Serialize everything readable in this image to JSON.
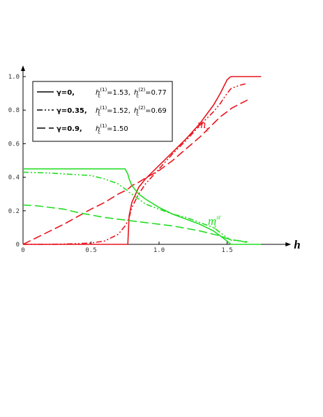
{
  "chart_data": {
    "type": "line",
    "xlabel": "h",
    "xlim": [
      0,
      1.95
    ],
    "ylim": [
      0,
      1.05
    ],
    "xticks": [
      0,
      0.5,
      {
        "value": 1,
        "label": "1.0"
      },
      1.5
    ],
    "yticks": [
      0,
      0.2,
      0.4,
      0.6,
      0.8,
      {
        "value": 1,
        "label": "1.0"
      }
    ],
    "x": [
      0,
      0.1,
      0.2,
      0.3,
      0.4,
      0.5,
      0.6,
      0.7,
      0.75,
      0.77,
      0.78,
      0.8,
      0.85,
      0.9,
      1.0,
      1.1,
      1.2,
      1.3,
      1.4,
      1.45,
      1.5,
      1.52,
      1.53,
      1.6,
      1.65,
      1.7,
      1.75
    ],
    "series": [
      {
        "color": "#e8141e",
        "dash": "solid",
        "values": [
          0,
          0,
          0,
          0,
          0,
          0,
          0,
          0,
          0,
          0,
          0.17,
          0.25,
          0.34,
          0.39,
          0.47,
          0.55,
          0.63,
          0.72,
          0.83,
          0.9,
          0.98,
          0.995,
          1,
          1,
          1,
          1,
          1
        ]
      },
      {
        "color": "#e8141e",
        "dash": "dash-dot-dot",
        "values": [
          0,
          0,
          0,
          0.002,
          0.004,
          0.008,
          0.02,
          0.06,
          0.11,
          0.14,
          0.16,
          0.22,
          0.3,
          0.36,
          0.45,
          0.54,
          0.62,
          0.71,
          0.79,
          0.84,
          0.9,
          0.92,
          0.93,
          0.95,
          0.96,
          null,
          null
        ]
      },
      {
        "color": "#e8141e",
        "dash": "long-dash",
        "values": [
          0,
          0.04,
          0.08,
          0.12,
          0.165,
          0.21,
          0.25,
          0.3,
          0.32,
          0.33,
          0.335,
          0.35,
          0.37,
          0.395,
          0.44,
          0.5,
          0.57,
          0.64,
          0.72,
          0.76,
          0.79,
          0.8,
          0.81,
          0.84,
          0.86,
          null,
          null
        ]
      },
      {
        "color": "#22dd22",
        "dash": "solid",
        "values": [
          0.45,
          0.45,
          0.45,
          0.45,
          0.45,
          0.45,
          0.45,
          0.45,
          0.45,
          0.42,
          0.39,
          0.35,
          0.3,
          0.27,
          0.22,
          0.18,
          0.15,
          0.12,
          0.08,
          0.05,
          0.02,
          0.005,
          0,
          0,
          0,
          0,
          0
        ]
      },
      {
        "color": "#22dd22",
        "dash": "dash-dot-dot",
        "values": [
          0.43,
          0.428,
          0.425,
          0.42,
          0.415,
          0.41,
          0.39,
          0.36,
          0.33,
          0.32,
          0.31,
          0.3,
          0.27,
          0.24,
          0.21,
          0.18,
          0.16,
          0.13,
          0.1,
          0.07,
          0.04,
          0.03,
          0.025,
          0.02,
          0.01,
          null,
          null
        ]
      },
      {
        "color": "#22dd22",
        "dash": "long-dash",
        "values": [
          0.235,
          0.23,
          0.22,
          0.21,
          0.19,
          0.175,
          0.16,
          0.15,
          0.145,
          0.143,
          0.142,
          0.14,
          0.135,
          0.13,
          0.12,
          0.11,
          0.095,
          0.08,
          0.06,
          0.05,
          0.035,
          0.03,
          0.028,
          0.02,
          0.015,
          null,
          null
        ]
      }
    ],
    "annotations": [
      {
        "text": "m",
        "sub": "z",
        "color": "#e8141e"
      },
      {
        "text": "m",
        "sub": "z",
        "sup": "st",
        "color": "#22dd22"
      }
    ],
    "legend": {
      "position": "upper left",
      "field_symbol": {
        "text": "h",
        "sub": "c"
      },
      "entries": [
        {
          "dash": "solid",
          "gamma": "γ=0,",
          "fields": [
            {
              "sup": "(1)",
              "text": "=1.53,"
            },
            {
              "sup": "(2)",
              "text": "=0.77"
            }
          ]
        },
        {
          "dash": "dash-dot-dot",
          "gamma": "γ=0.35,",
          "fields": [
            {
              "sup": "(1)",
              "text": "=1.52,"
            },
            {
              "sup": "(2)",
              "text": "=0.69"
            }
          ]
        },
        {
          "dash": "long-dash",
          "gamma": "γ=0.9,",
          "fields": [
            {
              "sup": "(1)",
              "text": "=1.50"
            }
          ]
        }
      ]
    }
  }
}
